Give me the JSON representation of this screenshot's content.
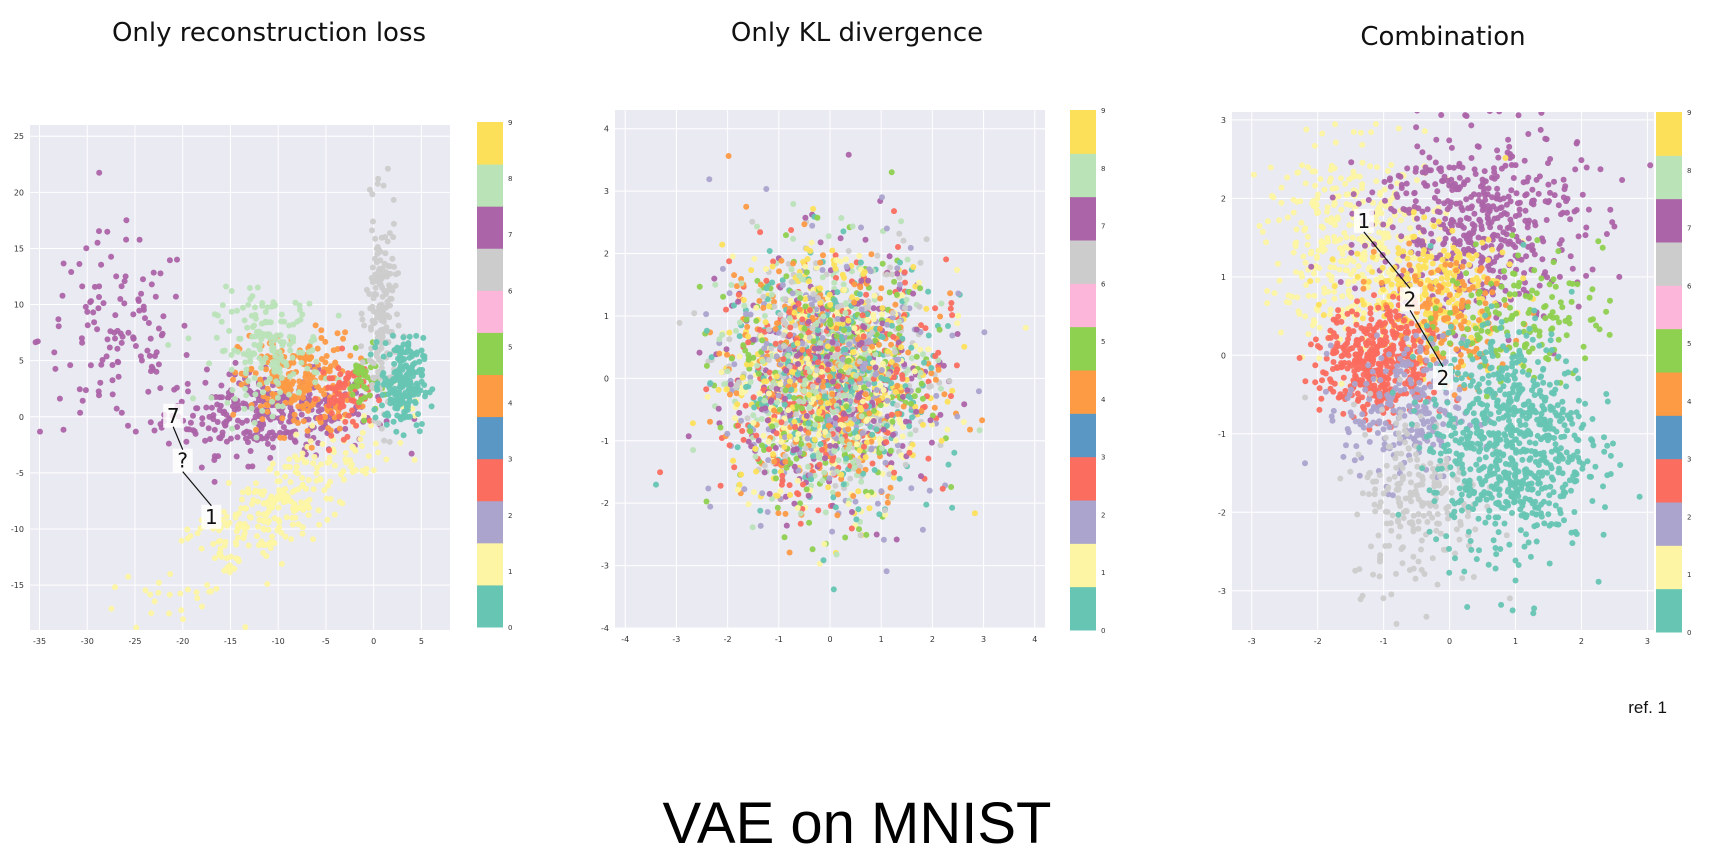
{
  "title": "VAE on MNIST",
  "reference": "ref. 1",
  "palette": {
    "0": "#66c5b3",
    "1": "#fdf5a3",
    "2": "#aba4cd",
    "3": "#fb6d5f",
    "4": "#fd9a44",
    "5": "#8ed04f",
    "6": "#fbb6da",
    "7": "#cccccc",
    "8": "#ac64a8",
    "9": "#bbe3b8",
    "10": "#fde05a"
  },
  "colorbar_ticks": [
    "0",
    "1",
    "2",
    "3",
    "4",
    "5",
    "6",
    "7",
    "8",
    "9"
  ],
  "chart_data": [
    {
      "type": "scatter",
      "title": "Only reconstruction loss",
      "xlim": [
        -36,
        8
      ],
      "ylim": [
        -19,
        26
      ],
      "xticks": [
        -35,
        -30,
        -25,
        -20,
        -15,
        -10,
        -5,
        0,
        5
      ],
      "yticks": [
        25,
        20,
        15,
        10,
        5,
        0,
        -5,
        -10,
        -15
      ],
      "grid": true,
      "annotations": [
        {
          "text": "7",
          "x": -21,
          "y": 0
        },
        {
          "text": "?",
          "x": -20,
          "y": -4
        },
        {
          "text": "1",
          "x": -17,
          "y": -9
        }
      ],
      "clusters": [
        {
          "digit": 8,
          "x": -11,
          "y": 0.3,
          "sx": 5.5,
          "sy": 1.8,
          "n": 300
        },
        {
          "digit": 8,
          "x": -27,
          "y": 7,
          "sx": 4,
          "sy": 4.5,
          "n": 120
        },
        {
          "digit": 1,
          "x": -10,
          "y": -8,
          "sx": 6,
          "sy": 2.2,
          "n": 300,
          "slope": 0.55
        },
        {
          "digit": 4,
          "x": -8,
          "y": 3,
          "sx": 3,
          "sy": 2.2,
          "n": 220
        },
        {
          "digit": 9,
          "x": -11,
          "y": 6,
          "sx": 2.8,
          "sy": 2.5,
          "n": 180
        },
        {
          "digit": 3,
          "x": -3,
          "y": 2,
          "sx": 1.3,
          "sy": 1.7,
          "n": 70
        },
        {
          "digit": 5,
          "x": -1,
          "y": 3,
          "sx": 0.8,
          "sy": 1.4,
          "n": 40
        },
        {
          "digit": 7,
          "x": 0.8,
          "y": 9,
          "sx": 0.8,
          "sy": 4.5,
          "n": 180
        },
        {
          "digit": 0,
          "x": 3,
          "y": 3,
          "sx": 1.1,
          "sy": 2,
          "n": 220
        }
      ]
    },
    {
      "type": "scatter",
      "title": "Only KL divergence",
      "xlim": [
        -4.2,
        4.2
      ],
      "ylim": [
        -4,
        4.3
      ],
      "xticks": [
        -4,
        -3,
        -2,
        -1,
        0,
        1,
        2,
        3,
        4
      ],
      "yticks": [
        4,
        3,
        2,
        1,
        0,
        -1,
        -2,
        -3,
        -4
      ],
      "grid": true,
      "clusters": [
        {
          "digit": "mixed",
          "x": 0,
          "y": 0,
          "sx": 1,
          "sy": 1,
          "n": 2600
        }
      ]
    },
    {
      "type": "scatter",
      "title": "Combination",
      "xlim": [
        -3.3,
        3.1
      ],
      "ylim": [
        -3.5,
        3.1
      ],
      "xticks": [
        -3,
        -2,
        -1,
        0,
        1,
        2,
        3
      ],
      "yticks": [
        3,
        2,
        1,
        0,
        -1,
        -2,
        -3
      ],
      "grid": true,
      "annotations": [
        {
          "text": "1",
          "x": -1.3,
          "y": 1.7
        },
        {
          "text": "2",
          "x": -0.6,
          "y": 0.7
        },
        {
          "text": "2",
          "x": -0.1,
          "y": -0.3
        }
      ],
      "clusters": [
        {
          "digit": 1,
          "x": -1.4,
          "y": 1.4,
          "sx": 0.7,
          "sy": 0.6,
          "n": 400
        },
        {
          "digit": 8,
          "x": 0.4,
          "y": 1.7,
          "sx": 0.8,
          "sy": 0.6,
          "n": 500
        },
        {
          "digit": 10,
          "x": -0.3,
          "y": 0.8,
          "sx": 0.6,
          "sy": 0.4,
          "n": 230
        },
        {
          "digit": 4,
          "x": -0.1,
          "y": 0.4,
          "sx": 0.5,
          "sy": 0.4,
          "n": 160
        },
        {
          "digit": 5,
          "x": 1.1,
          "y": 0.5,
          "sx": 0.6,
          "sy": 0.4,
          "n": 140
        },
        {
          "digit": 3,
          "x": -1.1,
          "y": -0.1,
          "sx": 0.4,
          "sy": 0.35,
          "n": 420
        },
        {
          "digit": 2,
          "x": -0.7,
          "y": -0.7,
          "sx": 0.45,
          "sy": 0.45,
          "n": 220
        },
        {
          "digit": 7,
          "x": -0.5,
          "y": -1.8,
          "sx": 0.5,
          "sy": 0.6,
          "n": 220
        },
        {
          "digit": 0,
          "x": 0.9,
          "y": -1.1,
          "sx": 0.6,
          "sy": 0.7,
          "n": 750
        }
      ]
    }
  ]
}
